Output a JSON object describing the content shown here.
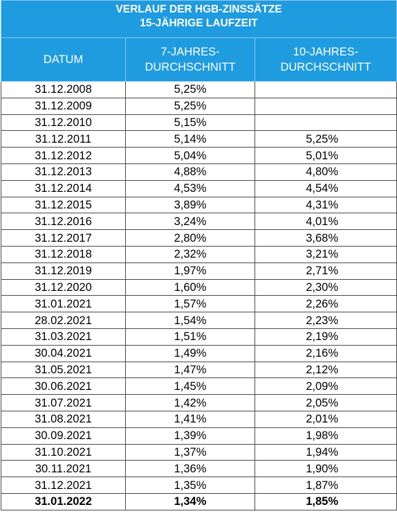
{
  "title": {
    "line1": "VERLAUF DER HGB-ZINSSÄTZE",
    "line2": "15-JÄHRIGE LAUFZEIT"
  },
  "columns": {
    "date": "DATUM",
    "avg7": [
      "7-JAHRES-",
      "DURCHSCHNITT"
    ],
    "avg10": [
      "10-JAHRES-",
      "DURCHSCHNITT"
    ]
  },
  "rows": [
    {
      "date": "31.12.2008",
      "avg7": "5,25%",
      "avg10": ""
    },
    {
      "date": "31.12.2009",
      "avg7": "5,25%",
      "avg10": ""
    },
    {
      "date": "31.12.2010",
      "avg7": "5,15%",
      "avg10": ""
    },
    {
      "date": "31.12.2011",
      "avg7": "5,14%",
      "avg10": "5,25%"
    },
    {
      "date": "31.12.2012",
      "avg7": "5,04%",
      "avg10": "5,01%"
    },
    {
      "date": "31.12.2013",
      "avg7": "4,88%",
      "avg10": "4,80%"
    },
    {
      "date": "31.12.2014",
      "avg7": "4,53%",
      "avg10": "4,54%"
    },
    {
      "date": "31.12.2015",
      "avg7": "3,89%",
      "avg10": "4,31%"
    },
    {
      "date": "31.12.2016",
      "avg7": "3,24%",
      "avg10": "4,01%"
    },
    {
      "date": "31.12.2017",
      "avg7": "2,80%",
      "avg10": "3,68%"
    },
    {
      "date": "31.12.2018",
      "avg7": "2,32%",
      "avg10": "3,21%"
    },
    {
      "date": "31.12.2019",
      "avg7": "1,97%",
      "avg10": "2,71%"
    },
    {
      "date": "31.12.2020",
      "avg7": "1,60%",
      "avg10": "2,30%"
    },
    {
      "date": "31.01.2021",
      "avg7": "1,57%",
      "avg10": "2,26%"
    },
    {
      "date": "28.02.2021",
      "avg7": "1,54%",
      "avg10": "2,23%"
    },
    {
      "date": "31.03.2021",
      "avg7": "1,51%",
      "avg10": "2,19%"
    },
    {
      "date": "30.04.2021",
      "avg7": "1,49%",
      "avg10": "2,16%"
    },
    {
      "date": "31.05.2021",
      "avg7": "1,47%",
      "avg10": "2,12%"
    },
    {
      "date": "30.06.2021",
      "avg7": "1,45%",
      "avg10": "2,09%"
    },
    {
      "date": "31.07.2021",
      "avg7": "1,42%",
      "avg10": "2,05%"
    },
    {
      "date": "31.08.2021",
      "avg7": "1,41%",
      "avg10": "2,01%"
    },
    {
      "date": "30.09.2021",
      "avg7": "1,39%",
      "avg10": "1,98%"
    },
    {
      "date": "31.10.2021",
      "avg7": "1,37%",
      "avg10": "1,94%"
    },
    {
      "date": "30.11.2021",
      "avg7": "1,36%",
      "avg10": "1,90%"
    },
    {
      "date": "31.12.2021",
      "avg7": "1,35%",
      "avg10": "1,87%"
    },
    {
      "date": "31.01.2022",
      "avg7": "1,34%",
      "avg10": "1,85%",
      "emphasis": true
    }
  ],
  "colors": {
    "header_bg": "#1f9be0",
    "header_text": "#ffffff",
    "grid": "#4a4a4a"
  }
}
